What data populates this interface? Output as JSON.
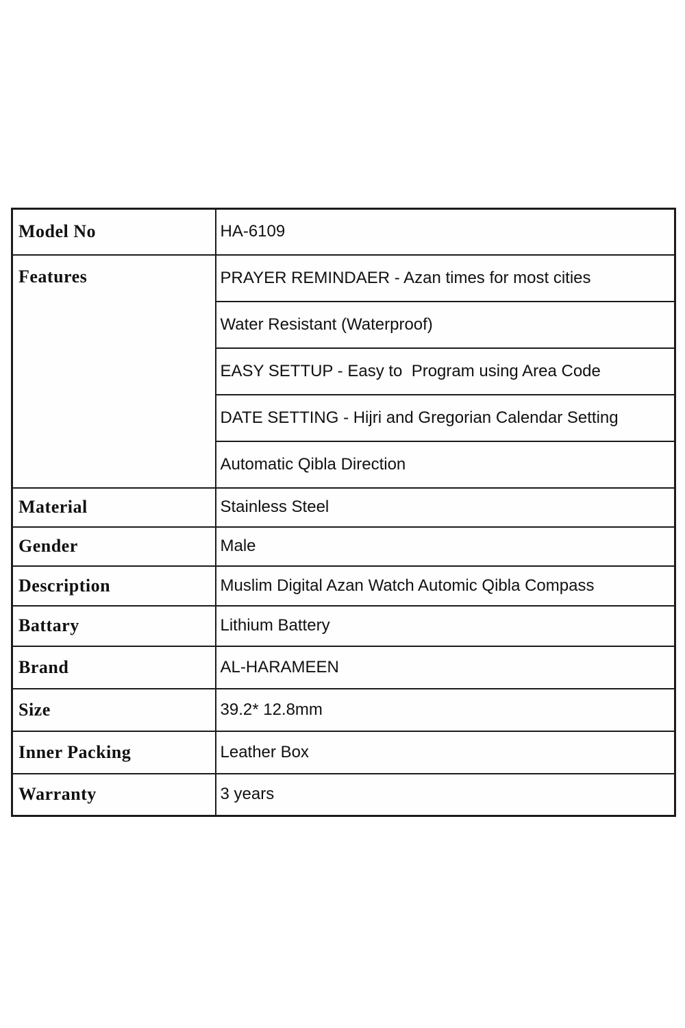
{
  "table": {
    "border_color": "#1b1b1b",
    "background_color": "#fefefe",
    "rows": {
      "model_no": {
        "label": "Model No",
        "value": "HA-6109"
      },
      "features": {
        "label": "Features",
        "items": [
          "PRAYER REMINDAER - Azan times for most cities",
          "Water Resistant (Waterproof)",
          "EASY SETTUP - Easy to  Program using Area Code",
          "DATE SETTING - Hijri and Gregorian Calendar Setting",
          "Automatic Qibla Direction"
        ]
      },
      "material": {
        "label": "Material",
        "value": "Stainless Steel"
      },
      "gender": {
        "label": "Gender",
        "value": "Male"
      },
      "description": {
        "label": "Description",
        "value": "Muslim Digital Azan Watch Automic Qibla Compass"
      },
      "battary": {
        "label": "Battary",
        "value": "Lithium Battery"
      },
      "brand": {
        "label": "Brand",
        "value": "AL-HARAMEEN"
      },
      "size": {
        "label": "Size",
        "value": "39.2* 12.8mm"
      },
      "inner_packing": {
        "label": "Inner Packing",
        "value": "Leather Box"
      },
      "warranty": {
        "label": "Warranty",
        "value": "3 years"
      }
    }
  }
}
